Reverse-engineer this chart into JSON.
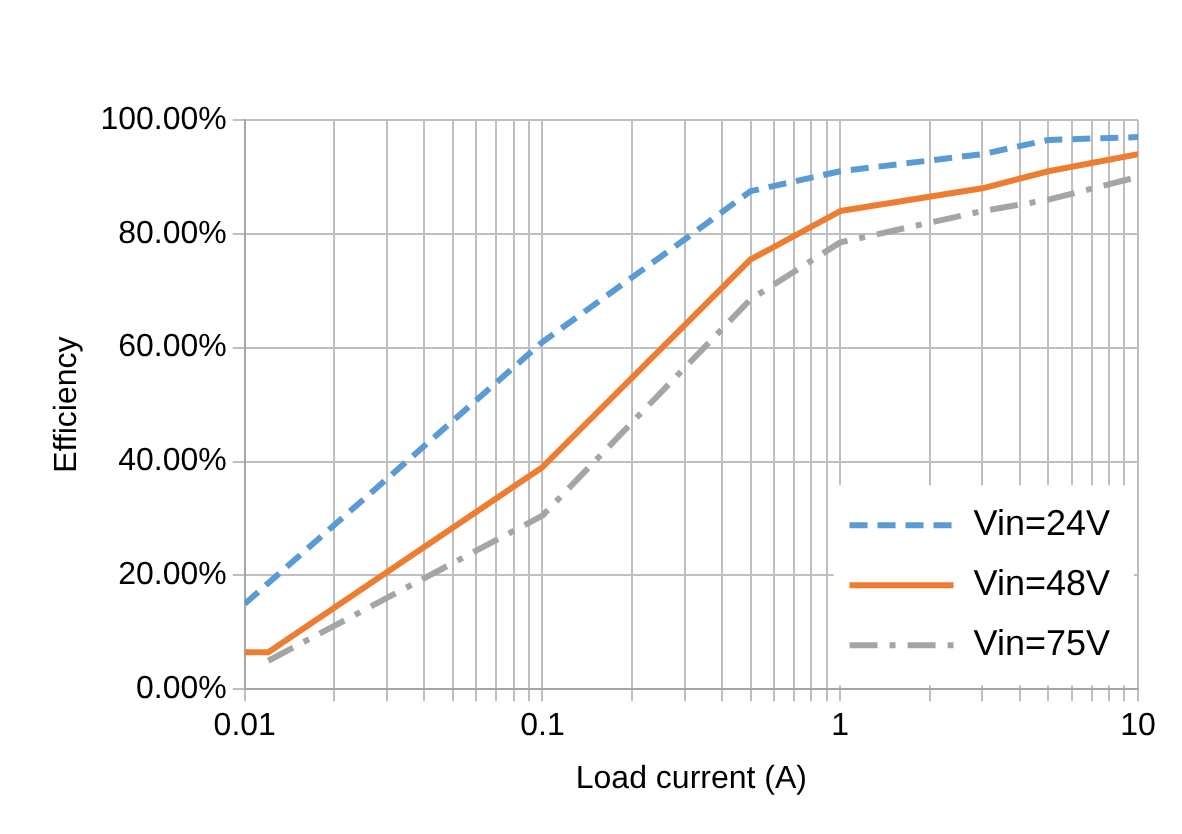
{
  "chart_data": {
    "type": "line",
    "xlabel": "Load current (A)",
    "ylabel": "Efficiency",
    "log": "x",
    "xlim": [
      0.01,
      10
    ],
    "xticks": [
      0.01,
      {
        "value": 0.02,
        "label": null
      },
      {
        "value": 0.03,
        "label": null
      },
      {
        "value": 0.04,
        "label": null
      },
      {
        "value": 0.05,
        "label": null
      },
      {
        "value": 0.06,
        "label": null
      },
      {
        "value": 0.07,
        "label": null
      },
      {
        "value": 0.08,
        "label": null
      },
      {
        "value": 0.09,
        "label": null
      },
      0.1,
      {
        "value": 0.2,
        "label": null
      },
      {
        "value": 0.3,
        "label": null
      },
      {
        "value": 0.4,
        "label": null
      },
      {
        "value": 0.5,
        "label": null
      },
      {
        "value": 0.6,
        "label": null
      },
      {
        "value": 0.7,
        "label": null
      },
      {
        "value": 0.8,
        "label": null
      },
      {
        "value": 0.9,
        "label": null
      },
      1,
      {
        "value": 2,
        "label": null
      },
      {
        "value": 3,
        "label": null
      },
      {
        "value": 4,
        "label": null
      },
      {
        "value": 5,
        "label": null
      },
      {
        "value": 6,
        "label": null
      },
      {
        "value": 7,
        "label": null
      },
      {
        "value": 8,
        "label": null
      },
      {
        "value": 9,
        "label": null
      },
      10
    ],
    "ylim": [
      0,
      100
    ],
    "yticks": [
      {
        "value": 0,
        "label": "0.00%"
      },
      {
        "value": 20,
        "label": "20.00%"
      },
      {
        "value": 40,
        "label": "40.00%"
      },
      {
        "value": 60,
        "label": "60.00%"
      },
      {
        "value": 80,
        "label": "80.00%"
      },
      {
        "value": 100,
        "label": "100.00%"
      }
    ],
    "grid": true,
    "legend": "bottom right",
    "marker": "none",
    "series": [
      {
        "name": "Vin=24V",
        "color": "#5b9bd5",
        "line_style": "dashed",
        "x": [
          0.01,
          0.1,
          0.3,
          0.5,
          1,
          3,
          5,
          10
        ],
        "values": [
          15,
          61,
          79,
          87.5,
          91,
          94,
          96.5,
          97
        ]
      },
      {
        "name": "Vin=48V",
        "color": "#ed7d31",
        "line_style": "solid",
        "x": [
          0.01,
          0.012,
          0.1,
          0.5,
          1,
          3,
          5,
          10
        ],
        "values": [
          6.5,
          6.5,
          39,
          75.5,
          84,
          88,
          91,
          94
        ]
      },
      {
        "name": "Vin=75V",
        "color": "#a5a5a5",
        "line_style": "dashdot",
        "x": [
          0.012,
          0.1,
          0.5,
          1,
          3,
          5,
          10
        ],
        "values": [
          5,
          30.5,
          68.5,
          78.5,
          84,
          86,
          90
        ]
      }
    ]
  }
}
